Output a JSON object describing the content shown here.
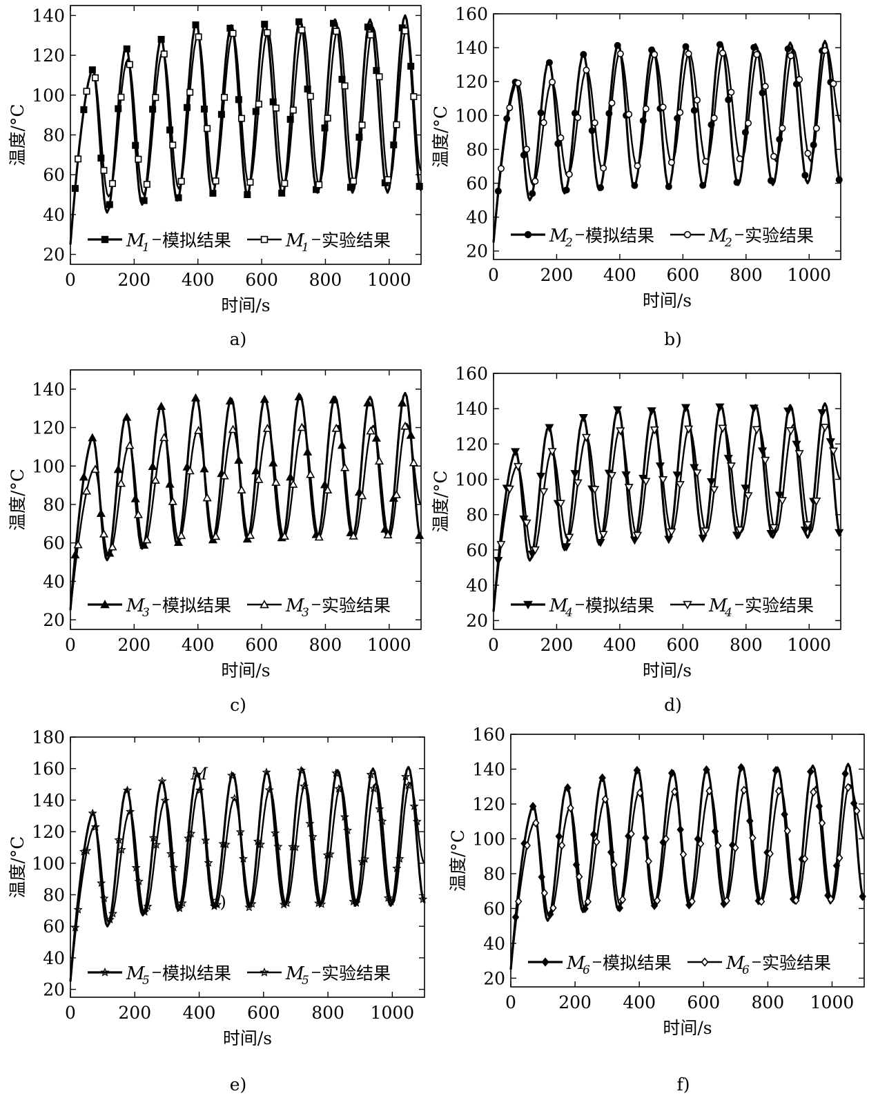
{
  "figure": {
    "panels": [
      {
        "caption": "a)",
        "ylabel": "温度/°C",
        "xlabel": "时间/s"
      },
      {
        "caption": "b)",
        "ylabel": "温度/°C",
        "xlabel": "时间/s"
      },
      {
        "caption": "c)",
        "ylabel": "温度/°C",
        "xlabel": "时间/s"
      },
      {
        "caption": "d)",
        "ylabel": "温度/°C",
        "xlabel": "时间/s"
      },
      {
        "caption": "e)",
        "ylabel": "温度/°C",
        "xlabel": "时间/s"
      },
      {
        "caption": "f)",
        "ylabel": "温度/°C",
        "xlabel": "时间/s"
      }
    ]
  },
  "chart_data": [
    {
      "type": "line",
      "caption": "a)",
      "xlabel": "时间/s",
      "ylabel": "温度/°C",
      "xlim": [
        0,
        1100
      ],
      "ylim": [
        15,
        145
      ],
      "xticks": [
        0,
        200,
        400,
        600,
        800,
        1000
      ],
      "yticks": [
        20,
        40,
        60,
        80,
        100,
        120,
        140
      ],
      "legend": "bottom",
      "series": [
        {
          "sub": "1",
          "suffix": "模拟结果",
          "marker": "square-filled",
          "peak_x": [
            70,
            175,
            285,
            395,
            505,
            610,
            720,
            830,
            940,
            1050
          ],
          "peak_y": [
            113,
            124,
            128,
            136,
            135,
            136,
            138,
            138,
            138,
            140
          ],
          "trough_x": [
            115,
            225,
            335,
            445,
            555,
            665,
            775,
            885,
            995
          ],
          "trough_y": [
            41,
            45,
            47,
            50,
            50,
            50,
            51,
            51,
            51
          ],
          "start": [
            0,
            25
          ],
          "end": [
            1100,
            52
          ]
        },
        {
          "sub": "1",
          "suffix": "实验结果",
          "marker": "square-open",
          "peak_x": [
            70,
            180,
            290,
            400,
            510,
            620,
            730,
            840,
            950,
            1055
          ],
          "peak_y": [
            113,
            118,
            122,
            130,
            131,
            132,
            134,
            134,
            134,
            134
          ],
          "trough_x": [
            120,
            230,
            340,
            450,
            560,
            670,
            780,
            890,
            1000
          ],
          "trough_y": [
            49,
            50,
            53,
            55,
            55,
            55,
            55,
            56,
            56
          ],
          "start": [
            0,
            25
          ],
          "end": [
            1100,
            62
          ]
        }
      ]
    },
    {
      "type": "line",
      "caption": "b)",
      "xlabel": "时间/s",
      "ylabel": "温度/°C",
      "xlim": [
        0,
        1100
      ],
      "ylim": [
        15,
        160
      ],
      "xticks": [
        0,
        200,
        400,
        600,
        800,
        1000
      ],
      "yticks": [
        20,
        40,
        60,
        80,
        100,
        120,
        140,
        160
      ],
      "legend": "bottom",
      "series": [
        {
          "sub": "2",
          "suffix": "模拟结果",
          "marker": "circle-filled",
          "peak_x": [
            70,
            175,
            285,
            395,
            505,
            610,
            720,
            830,
            940,
            1050
          ],
          "peak_y": [
            120,
            132,
            136,
            142,
            140,
            141,
            143,
            142,
            143,
            144
          ],
          "trough_x": [
            115,
            225,
            335,
            445,
            555,
            665,
            775,
            885,
            995
          ],
          "trough_y": [
            50,
            54,
            56,
            58,
            58,
            58,
            59,
            59,
            60
          ],
          "start": [
            0,
            25
          ],
          "end": [
            1100,
            60
          ]
        },
        {
          "sub": "2",
          "suffix": "实验结果",
          "marker": "circle-open",
          "peak_x": [
            75,
            185,
            295,
            400,
            510,
            620,
            730,
            840,
            950,
            1055
          ],
          "peak_y": [
            120,
            120,
            127,
            137,
            136,
            137,
            138,
            138,
            139,
            140
          ],
          "trough_x": [
            125,
            235,
            345,
            455,
            565,
            675,
            785,
            895,
            1005
          ],
          "trough_y": [
            59,
            64,
            68,
            70,
            72,
            72,
            73,
            73,
            73
          ],
          "start": [
            0,
            25
          ],
          "end": [
            1100,
            96
          ]
        }
      ]
    },
    {
      "type": "line",
      "caption": "c)",
      "xlabel": "时间/s",
      "ylabel": "温度/°C",
      "xlim": [
        0,
        1100
      ],
      "ylim": [
        15,
        150
      ],
      "xticks": [
        0,
        200,
        400,
        600,
        800,
        1000
      ],
      "yticks": [
        20,
        40,
        60,
        80,
        100,
        120,
        140
      ],
      "legend": "bottom",
      "series": [
        {
          "sub": "3",
          "suffix": "模拟结果",
          "marker": "triangle-up-filled",
          "peak_x": [
            70,
            175,
            285,
            395,
            505,
            610,
            720,
            830,
            940,
            1050
          ],
          "peak_y": [
            115,
            126,
            131,
            136,
            135,
            135,
            137,
            136,
            136,
            138
          ],
          "trough_x": [
            115,
            225,
            335,
            445,
            555,
            665,
            775,
            885,
            995
          ],
          "trough_y": [
            51,
            57,
            59,
            61,
            62,
            62,
            63,
            63,
            63
          ],
          "start": [
            0,
            25
          ],
          "end": [
            1100,
            62
          ]
        },
        {
          "sub": "3",
          "suffix": "实验结果",
          "marker": "triangle-up-open",
          "peak_x": [
            75,
            185,
            295,
            400,
            510,
            620,
            730,
            840,
            950,
            1055
          ],
          "peak_y": [
            99,
            111,
            115,
            119,
            119,
            120,
            121,
            121,
            121,
            122
          ],
          "trough_x": [
            120,
            230,
            340,
            450,
            560,
            670,
            780,
            890,
            1000
          ],
          "trough_y": [
            53,
            58,
            61,
            62,
            63,
            63,
            63,
            63,
            63
          ],
          "start": [
            0,
            25
          ],
          "end": [
            1100,
            80
          ]
        }
      ]
    },
    {
      "type": "line",
      "caption": "d)",
      "xlabel": "时间/s",
      "ylabel": "温度/°C",
      "xlim": [
        0,
        1100
      ],
      "ylim": [
        15,
        160
      ],
      "xticks": [
        0,
        200,
        400,
        600,
        800,
        1000
      ],
      "yticks": [
        20,
        40,
        60,
        80,
        100,
        120,
        140,
        160
      ],
      "legend": "bottom",
      "series": [
        {
          "sub": "4",
          "suffix": "模拟结果",
          "marker": "triangle-down-filled",
          "peak_x": [
            70,
            175,
            285,
            395,
            505,
            610,
            720,
            830,
            940,
            1050
          ],
          "peak_y": [
            116,
            130,
            135,
            140,
            140,
            141,
            142,
            142,
            142,
            143
          ],
          "trough_x": [
            115,
            225,
            335,
            445,
            555,
            665,
            775,
            885,
            995
          ],
          "trough_y": [
            54,
            60,
            63,
            65,
            66,
            66,
            67,
            67,
            67
          ],
          "start": [
            0,
            25
          ],
          "end": [
            1100,
            68
          ]
        },
        {
          "sub": "4",
          "suffix": "实验结果",
          "marker": "triangle-down-open",
          "peak_x": [
            75,
            185,
            295,
            400,
            510,
            620,
            730,
            840,
            950,
            1055
          ],
          "peak_y": [
            108,
            116,
            124,
            128,
            128,
            129,
            130,
            130,
            131,
            131
          ],
          "trough_x": [
            125,
            235,
            345,
            455,
            565,
            675,
            785,
            895,
            1005
          ],
          "trough_y": [
            58,
            66,
            68,
            68,
            70,
            70,
            70,
            70,
            70
          ],
          "start": [
            0,
            25
          ],
          "end": [
            1100,
            100
          ]
        }
      ]
    },
    {
      "type": "line",
      "caption": "e)",
      "xlabel": "时间/s",
      "ylabel": "温度/°C",
      "xlim": [
        0,
        1100
      ],
      "ylim": [
        15,
        180
      ],
      "xticks": [
        0,
        200,
        400,
        600,
        800,
        1000
      ],
      "yticks": [
        20,
        40,
        60,
        80,
        100,
        120,
        140,
        160,
        180
      ],
      "legend": "bottom",
      "annotations": [
        "M",
        "c)"
      ],
      "series": [
        {
          "sub": "5",
          "suffix": "模拟结果",
          "marker": "star",
          "peak_x": [
            70,
            175,
            285,
            395,
            505,
            610,
            720,
            830,
            940,
            1050
          ],
          "peak_y": [
            132,
            147,
            152,
            157,
            157,
            158,
            160,
            159,
            160,
            161
          ],
          "trough_x": [
            115,
            225,
            335,
            445,
            555,
            665,
            775,
            885,
            995
          ],
          "trough_y": [
            60,
            67,
            70,
            72,
            72,
            73,
            73,
            73,
            73
          ],
          "start": [
            0,
            25
          ],
          "end": [
            1100,
            75
          ]
        },
        {
          "sub": "5",
          "suffix": "实验结果",
          "marker": "star",
          "peak_x": [
            75,
            185,
            295,
            400,
            510,
            620,
            730,
            840,
            950,
            1055
          ],
          "peak_y": [
            124,
            133,
            140,
            147,
            141,
            147,
            150,
            149,
            151,
            151
          ],
          "trough_x": [
            120,
            230,
            340,
            450,
            560,
            670,
            780,
            890,
            1000
          ],
          "trough_y": [
            62,
            68,
            71,
            72,
            73,
            74,
            74,
            74,
            74
          ],
          "start": [
            0,
            25
          ],
          "end": [
            1100,
            100
          ]
        }
      ]
    },
    {
      "type": "line",
      "caption": "f)",
      "xlabel": "时间/s",
      "ylabel": "温度/°C",
      "xlim": [
        0,
        1100
      ],
      "ylim": [
        15,
        160
      ],
      "xticks": [
        0,
        200,
        400,
        600,
        800,
        1000
      ],
      "yticks": [
        20,
        40,
        60,
        80,
        100,
        120,
        140,
        160
      ],
      "legend": "bottom",
      "series": [
        {
          "sub": "6",
          "suffix": "模拟结果",
          "marker": "diamond-filled",
          "peak_x": [
            70,
            175,
            285,
            395,
            505,
            610,
            720,
            830,
            940,
            1050
          ],
          "peak_y": [
            119,
            130,
            135,
            140,
            139,
            140,
            142,
            141,
            142,
            143
          ],
          "trough_x": [
            115,
            225,
            335,
            445,
            555,
            665,
            775,
            885,
            995
          ],
          "trough_y": [
            53,
            58,
            59,
            61,
            62,
            62,
            63,
            63,
            63
          ],
          "start": [
            0,
            25
          ],
          "end": [
            1100,
            65
          ]
        },
        {
          "sub": "6",
          "suffix": "实验结果",
          "marker": "diamond-open",
          "peak_x": [
            75,
            185,
            295,
            400,
            510,
            620,
            730,
            840,
            950,
            1055
          ],
          "peak_y": [
            110,
            118,
            123,
            127,
            127,
            128,
            129,
            129,
            130,
            131
          ],
          "trough_x": [
            120,
            230,
            340,
            450,
            560,
            670,
            780,
            890,
            1000
          ],
          "trough_y": [
            55,
            60,
            62,
            63,
            63,
            64,
            64,
            64,
            64
          ],
          "start": [
            0,
            25
          ],
          "end": [
            1100,
            100
          ]
        }
      ]
    }
  ]
}
